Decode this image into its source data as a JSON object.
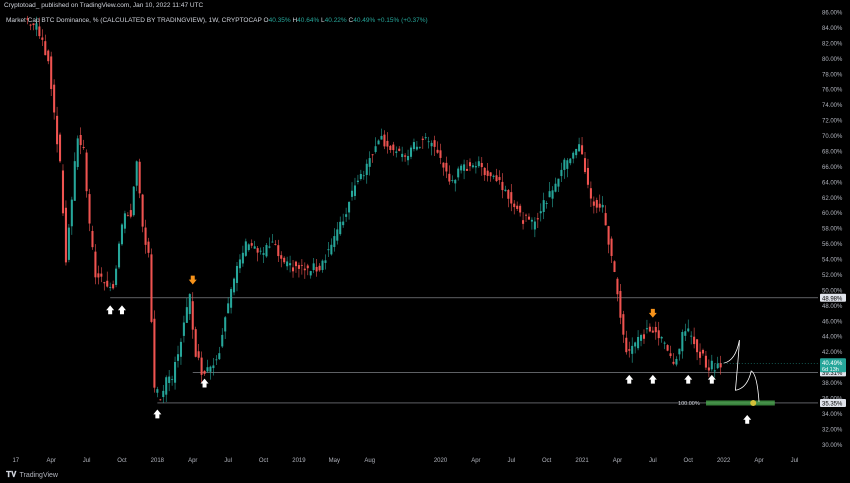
{
  "header": {
    "publish_line": "Cryptotoad_ published on TradingView.com, Jan 10, 2022 11:47 UTC"
  },
  "legend": {
    "symbol": "Market Cap BTC Dominance, % (CALCULATED BY TRADINGVIEW), 1W, CRYPTOCAP",
    "o_label": "O",
    "o_value": "40.35%",
    "h_label": "H",
    "h_value": "40.64%",
    "l_label": "L",
    "l_value": "40.22%",
    "c_label": "C",
    "c_value": "40.49%",
    "change": "+0.15% (+0.37%)"
  },
  "footer": {
    "brand": "TradingView"
  },
  "colors": {
    "up": "#26a69a",
    "down": "#ef5350",
    "level": "#b2b5be",
    "arrow_white": "#ffffff",
    "arrow_orange": "#f7931a",
    "target_band": "#4caf50",
    "target_dot": "#d4c13a",
    "price_badge": "#26a69a"
  },
  "chart_data": {
    "type": "candlestick",
    "y_unit": "%",
    "ylim": [
      29,
      86
    ],
    "y_ticks": [
      "30.00%",
      "32.00%",
      "34.00%",
      "36.00%",
      "38.00%",
      "40.00%",
      "42.00%",
      "44.00%",
      "46.00%",
      "48.00%",
      "50.00%",
      "52.00%",
      "54.00%",
      "56.00%",
      "58.00%",
      "60.00%",
      "62.00%",
      "64.00%",
      "66.00%",
      "68.00%",
      "70.00%",
      "72.00%",
      "74.00%",
      "76.00%",
      "78.00%",
      "80.00%",
      "82.00%",
      "84.00%",
      "86.00%"
    ],
    "x_ticks": [
      {
        "date": "2017-01",
        "label": "17"
      },
      {
        "date": "2017-04",
        "label": "Apr"
      },
      {
        "date": "2017-07",
        "label": "Jul"
      },
      {
        "date": "2017-10",
        "label": "Oct"
      },
      {
        "date": "2018-01",
        "label": "2018"
      },
      {
        "date": "2018-04",
        "label": "Apr"
      },
      {
        "date": "2018-07",
        "label": "Jul"
      },
      {
        "date": "2018-10",
        "label": "Oct"
      },
      {
        "date": "2019-01",
        "label": "2019"
      },
      {
        "date": "2019-04",
        "label": "May"
      },
      {
        "date": "2019-07",
        "label": "Aug"
      },
      {
        "date": "2020-01",
        "label": "2020"
      },
      {
        "date": "2020-04",
        "label": "Apr"
      },
      {
        "date": "2020-07",
        "label": "Jul"
      },
      {
        "date": "2020-10",
        "label": "Oct"
      },
      {
        "date": "2021-01",
        "label": "2021"
      },
      {
        "date": "2021-04",
        "label": "Apr"
      },
      {
        "date": "2021-07",
        "label": "Jul"
      },
      {
        "date": "2021-10",
        "label": "Oct"
      },
      {
        "date": "2022-01",
        "label": "2022"
      },
      {
        "date": "2022-04",
        "label": "Apr"
      },
      {
        "date": "2022-07",
        "label": "Jul"
      }
    ],
    "x_range": [
      "2016-12",
      "2022-09"
    ],
    "price_path": [
      [
        "2017-02",
        85.2
      ],
      [
        "2017-03",
        84.0
      ],
      [
        "2017-04",
        80.0
      ],
      [
        "2017-05",
        66.0
      ],
      [
        "2017-05",
        54.0
      ],
      [
        "2017-06",
        62.0
      ],
      [
        "2017-06",
        70.0
      ],
      [
        "2017-07",
        68.0
      ],
      [
        "2017-07",
        58.0
      ],
      [
        "2017-08",
        52.0
      ],
      [
        "2017-09",
        51.0
      ],
      [
        "2017-09",
        50.0
      ],
      [
        "2017-10",
        56.0
      ],
      [
        "2017-10",
        60.0
      ],
      [
        "2017-11",
        60.0
      ],
      [
        "2017-11",
        66.0
      ],
      [
        "2017-12",
        58.0
      ],
      [
        "2017-12",
        55.0
      ],
      [
        "2018-01",
        37.0
      ],
      [
        "2018-01",
        36.0
      ],
      [
        "2018-02",
        38.0
      ],
      [
        "2018-02",
        38.5
      ],
      [
        "2018-03",
        42.0
      ],
      [
        "2018-03",
        45.5
      ],
      [
        "2018-04",
        49.0
      ],
      [
        "2018-04",
        42.0
      ],
      [
        "2018-05",
        39.5
      ],
      [
        "2018-05",
        40.0
      ],
      [
        "2018-06",
        40.5
      ],
      [
        "2018-06",
        42.5
      ],
      [
        "2018-07",
        47.0
      ],
      [
        "2018-08",
        52.5
      ],
      [
        "2018-08",
        55.0
      ],
      [
        "2018-09",
        56.5
      ],
      [
        "2018-10",
        54.5
      ],
      [
        "2018-11",
        56.0
      ],
      [
        "2018-12",
        53.0
      ],
      [
        "2019-01",
        53.0
      ],
      [
        "2019-02",
        52.5
      ],
      [
        "2019-03",
        53.0
      ],
      [
        "2019-04",
        56.0
      ],
      [
        "2019-05",
        59.0
      ],
      [
        "2019-06",
        64.0
      ],
      [
        "2019-07",
        66.0
      ],
      [
        "2019-08",
        70.0
      ],
      [
        "2019-09",
        68.5
      ],
      [
        "2019-10",
        67.0
      ],
      [
        "2019-11",
        68.5
      ],
      [
        "2019-12",
        69.5
      ],
      [
        "2020-01",
        68.0
      ],
      [
        "2020-02",
        64.0
      ],
      [
        "2020-03",
        65.5
      ],
      [
        "2020-04",
        66.5
      ],
      [
        "2020-05",
        65.5
      ],
      [
        "2020-06",
        64.5
      ],
      [
        "2020-07",
        62.5
      ],
      [
        "2020-08",
        59.5
      ],
      [
        "2020-09",
        58.5
      ],
      [
        "2020-10",
        61.0
      ],
      [
        "2020-11",
        64.0
      ],
      [
        "2020-12",
        67.0
      ],
      [
        "2021-01",
        69.0
      ],
      [
        "2021-02",
        61.5
      ],
      [
        "2021-03",
        60.5
      ],
      [
        "2021-04",
        52.0
      ],
      [
        "2021-05",
        42.0
      ],
      [
        "2021-06",
        43.5
      ],
      [
        "2021-07",
        45.0
      ],
      [
        "2021-08",
        43.5
      ],
      [
        "2021-09",
        40.5
      ],
      [
        "2021-10",
        45.0
      ],
      [
        "2021-11",
        42.5
      ],
      [
        "2021-12",
        40.0
      ],
      [
        "2022-01",
        40.49
      ]
    ],
    "h_levels": [
      {
        "value": 48.98,
        "label": "48.98%",
        "from": "2017-09",
        "to": "2022-07"
      },
      {
        "value": 39.31,
        "label": "39.31%",
        "from": "2018-04",
        "to": "2022-07"
      },
      {
        "value": 35.35,
        "label": "35.35%",
        "from": "2018-01",
        "to": "2022-07"
      }
    ],
    "current": {
      "value": 40.49,
      "label": "40.49%",
      "sub": "6d 13h"
    },
    "fib_label": {
      "value": 35.35,
      "label": "100.00%",
      "date": "2021-11"
    },
    "target_zone": {
      "from": "2021-11",
      "to": "2022-05",
      "value": 35.35
    },
    "target_point": {
      "date": "2022-03",
      "value": 35.35
    },
    "projection": [
      [
        "2022-01",
        40.5
      ],
      [
        "2022-02",
        43.5
      ],
      [
        "2022-02",
        37.0
      ],
      [
        "2022-03",
        39.5
      ],
      [
        "2022-04",
        35.5
      ]
    ],
    "white_arrows": [
      {
        "date": "2017-09",
        "value": 47.5
      },
      {
        "date": "2017-10",
        "value": 47.5
      },
      {
        "date": "2018-01",
        "value": 34.0
      },
      {
        "date": "2018-05",
        "value": 38.0
      },
      {
        "date": "2021-05",
        "value": 38.5
      },
      {
        "date": "2021-07",
        "value": 38.5
      },
      {
        "date": "2021-10",
        "value": 38.5
      },
      {
        "date": "2021-12",
        "value": 38.5
      },
      {
        "date": "2022-03",
        "value": 33.3
      }
    ],
    "orange_arrows": [
      {
        "date": "2018-04",
        "value": 51.2
      },
      {
        "date": "2021-07",
        "value": 46.9
      }
    ]
  }
}
